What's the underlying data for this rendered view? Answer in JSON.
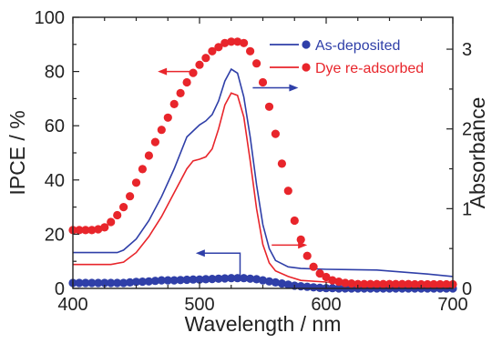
{
  "chart_data": {
    "type": "line",
    "x_axis": {
      "label": "Wavelength / nm",
      "range": [
        400,
        700
      ],
      "ticks": [
        400,
        500,
        600,
        700
      ]
    },
    "y_left": {
      "label": "IPCE / %",
      "range": [
        0,
        100
      ],
      "ticks": [
        0,
        20,
        40,
        60,
        80,
        100
      ]
    },
    "y_right": {
      "label": "Absorbance",
      "range": [
        0,
        3.4
      ],
      "ticks": [
        0,
        1,
        2,
        3
      ]
    },
    "legend": {
      "placement": "top-right",
      "entries": [
        {
          "label": "As-deposited",
          "color": "#2f3fa8"
        },
        {
          "label": "Dye re-adsorbed",
          "color": "#e8252b"
        }
      ]
    },
    "series": [
      {
        "name": "As-deposited",
        "quantity": "IPCE",
        "axis": "left",
        "marker": "circle",
        "color": "#2f3fa8",
        "points": [
          [
            400,
            2
          ],
          [
            405,
            2
          ],
          [
            410,
            2
          ],
          [
            415,
            2
          ],
          [
            420,
            2
          ],
          [
            425,
            2
          ],
          [
            430,
            2
          ],
          [
            435,
            2
          ],
          [
            440,
            2
          ],
          [
            445,
            2.2
          ],
          [
            450,
            2.4
          ],
          [
            455,
            2.5
          ],
          [
            460,
            2.6
          ],
          [
            465,
            2.8
          ],
          [
            470,
            3
          ],
          [
            475,
            3
          ],
          [
            480,
            3
          ],
          [
            485,
            3.1
          ],
          [
            490,
            3.2
          ],
          [
            495,
            3.3
          ],
          [
            500,
            3.3
          ],
          [
            505,
            3.4
          ],
          [
            510,
            3.5
          ],
          [
            515,
            3.6
          ],
          [
            520,
            3.7
          ],
          [
            525,
            3.8
          ],
          [
            530,
            3.8
          ],
          [
            535,
            3.8
          ],
          [
            540,
            3.6
          ],
          [
            545,
            3.4
          ],
          [
            550,
            3
          ],
          [
            555,
            2.6
          ],
          [
            560,
            2.2
          ],
          [
            565,
            1.8
          ],
          [
            570,
            1.4
          ],
          [
            575,
            1
          ],
          [
            580,
            0.8
          ],
          [
            585,
            0.6
          ],
          [
            590,
            0.4
          ],
          [
            595,
            0.2
          ],
          [
            600,
            0.1
          ],
          [
            605,
            0.1
          ],
          [
            610,
            0
          ],
          [
            615,
            0
          ],
          [
            620,
            0
          ],
          [
            625,
            0
          ],
          [
            630,
            0
          ],
          [
            635,
            0
          ],
          [
            640,
            0
          ],
          [
            645,
            0
          ],
          [
            650,
            0
          ],
          [
            655,
            0
          ],
          [
            660,
            0
          ],
          [
            665,
            0
          ],
          [
            670,
            0
          ],
          [
            675,
            0
          ],
          [
            680,
            0
          ],
          [
            685,
            0
          ],
          [
            690,
            0
          ],
          [
            695,
            0
          ],
          [
            700,
            0
          ]
        ]
      },
      {
        "name": "Dye re-adsorbed",
        "quantity": "IPCE",
        "axis": "left",
        "marker": "circle",
        "color": "#e8252b",
        "points": [
          [
            400,
            21.5
          ],
          [
            405,
            21.5
          ],
          [
            410,
            21.5
          ],
          [
            415,
            21.5
          ],
          [
            420,
            21.8
          ],
          [
            425,
            22.5
          ],
          [
            430,
            24.5
          ],
          [
            435,
            27
          ],
          [
            440,
            30
          ],
          [
            445,
            34
          ],
          [
            450,
            39
          ],
          [
            455,
            44
          ],
          [
            460,
            49
          ],
          [
            465,
            54
          ],
          [
            470,
            58.5
          ],
          [
            475,
            63
          ],
          [
            480,
            68
          ],
          [
            485,
            72
          ],
          [
            490,
            76
          ],
          [
            495,
            79.5
          ],
          [
            500,
            82.5
          ],
          [
            505,
            85
          ],
          [
            510,
            87.5
          ],
          [
            515,
            89
          ],
          [
            520,
            90.5
          ],
          [
            525,
            91
          ],
          [
            530,
            91
          ],
          [
            535,
            90.5
          ],
          [
            540,
            87.5
          ],
          [
            545,
            83
          ],
          [
            550,
            76
          ],
          [
            555,
            67
          ],
          [
            560,
            57
          ],
          [
            565,
            46
          ],
          [
            570,
            36
          ],
          [
            575,
            25
          ],
          [
            580,
            18
          ],
          [
            585,
            12
          ],
          [
            590,
            8
          ],
          [
            595,
            5.5
          ],
          [
            600,
            4.2
          ],
          [
            605,
            3
          ],
          [
            610,
            2.5
          ],
          [
            615,
            2
          ],
          [
            620,
            1.8
          ],
          [
            625,
            1.6
          ],
          [
            630,
            1.6
          ],
          [
            635,
            1.6
          ],
          [
            640,
            1.6
          ],
          [
            645,
            1.6
          ],
          [
            650,
            1.6
          ],
          [
            655,
            1.6
          ],
          [
            660,
            1.6
          ],
          [
            665,
            1.6
          ],
          [
            670,
            1.5
          ],
          [
            675,
            1.5
          ],
          [
            680,
            1.5
          ],
          [
            685,
            1.5
          ],
          [
            690,
            1.5
          ],
          [
            695,
            1.5
          ],
          [
            700,
            1.5
          ]
        ]
      },
      {
        "name": "As-deposited",
        "quantity": "Absorbance",
        "axis": "right",
        "marker": "none",
        "color": "#2f3fa8",
        "points": [
          [
            400,
            0.45
          ],
          [
            420,
            0.45
          ],
          [
            435,
            0.45
          ],
          [
            440,
            0.48
          ],
          [
            450,
            0.62
          ],
          [
            460,
            0.85
          ],
          [
            470,
            1.15
          ],
          [
            480,
            1.5
          ],
          [
            490,
            1.9
          ],
          [
            500,
            2.05
          ],
          [
            505,
            2.1
          ],
          [
            510,
            2.18
          ],
          [
            515,
            2.35
          ],
          [
            520,
            2.6
          ],
          [
            525,
            2.75
          ],
          [
            530,
            2.7
          ],
          [
            535,
            2.4
          ],
          [
            540,
            1.9
          ],
          [
            545,
            1.3
          ],
          [
            550,
            0.8
          ],
          [
            555,
            0.5
          ],
          [
            560,
            0.35
          ],
          [
            570,
            0.27
          ],
          [
            580,
            0.25
          ],
          [
            600,
            0.24
          ],
          [
            640,
            0.23
          ],
          [
            680,
            0.18
          ],
          [
            700,
            0.15
          ]
        ]
      },
      {
        "name": "Dye re-adsorbed",
        "quantity": "Absorbance",
        "axis": "right",
        "marker": "none",
        "color": "#e8252b",
        "points": [
          [
            400,
            0.3
          ],
          [
            430,
            0.3
          ],
          [
            440,
            0.33
          ],
          [
            450,
            0.45
          ],
          [
            460,
            0.65
          ],
          [
            470,
            0.9
          ],
          [
            480,
            1.2
          ],
          [
            490,
            1.5
          ],
          [
            495,
            1.6
          ],
          [
            500,
            1.62
          ],
          [
            505,
            1.65
          ],
          [
            510,
            1.75
          ],
          [
            515,
            2
          ],
          [
            520,
            2.3
          ],
          [
            525,
            2.45
          ],
          [
            530,
            2.42
          ],
          [
            535,
            2.15
          ],
          [
            540,
            1.6
          ],
          [
            545,
            1
          ],
          [
            550,
            0.55
          ],
          [
            555,
            0.32
          ],
          [
            560,
            0.22
          ],
          [
            570,
            0.15
          ],
          [
            580,
            0.1
          ],
          [
            600,
            0.08
          ],
          [
            640,
            0.06
          ],
          [
            700,
            0.05
          ]
        ]
      }
    ],
    "annotations": [
      {
        "kind": "arrow",
        "direction": "left",
        "color": "#e8252b",
        "from": [
          497,
          80
        ],
        "to": [
          467,
          80
        ],
        "means": "points to left axis"
      },
      {
        "kind": "arrow",
        "direction": "right",
        "color": "#2f3fa8",
        "from": [
          542,
          74
        ],
        "to": [
          578,
          74
        ],
        "means": "points to right axis"
      },
      {
        "kind": "arrow",
        "direction": "right",
        "color": "#e8252b",
        "from": [
          557,
          16
        ],
        "to": [
          585,
          16
        ],
        "means": "points to right axis"
      },
      {
        "kind": "arrow",
        "direction": "left",
        "color": "#2f3fa8",
        "from": [
          532,
          13
        ],
        "to": [
          497,
          13
        ],
        "bend_to_y": 3.8,
        "means": "points to left axis"
      }
    ]
  }
}
